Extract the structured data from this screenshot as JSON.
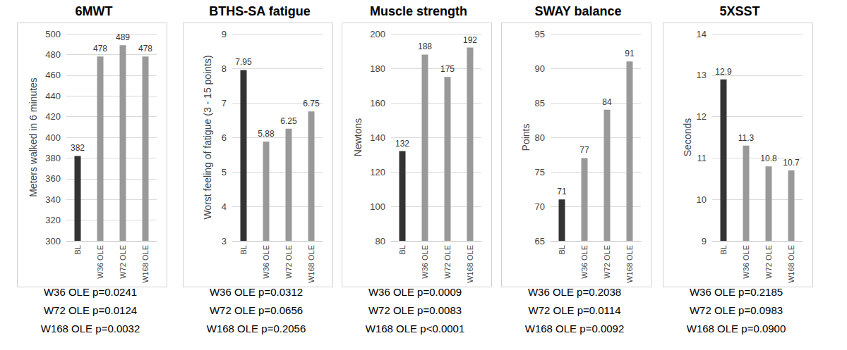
{
  "chart_data": [
    {
      "type": "bar",
      "title": "6MWT",
      "y_label": "Meters walked in 6 minutes",
      "categories": [
        "BL",
        "W36 OLE",
        "W72 OLE",
        "W168 OLE"
      ],
      "values": [
        382,
        478,
        489,
        478
      ],
      "colors": [
        "#333333",
        "#999999",
        "#999999",
        "#999999"
      ],
      "ylim": [
        300,
        500
      ],
      "yticks": [
        300,
        320,
        340,
        360,
        380,
        400,
        420,
        440,
        460,
        480,
        500
      ],
      "grid": true,
      "data_labels": true,
      "annotations": [
        "W36 OLE p=0.0241",
        "W72 OLE p=0.0124",
        "W168 OLE p=0.0032"
      ]
    },
    {
      "type": "bar",
      "title": "BTHS-SA fatigue",
      "y_label": "Worst feeling of fatigue (3 - 15 points)",
      "categories": [
        "BL",
        "W36 OLE",
        "W72 OLE",
        "W168 OLE"
      ],
      "values": [
        7.95,
        5.88,
        6.25,
        6.75
      ],
      "colors": [
        "#333333",
        "#999999",
        "#999999",
        "#999999"
      ],
      "ylim": [
        3,
        9
      ],
      "yticks": [
        3,
        4,
        5,
        6,
        7,
        8,
        9
      ],
      "grid": true,
      "data_labels": true,
      "annotations": [
        "W36 OLE p=0.0312",
        "W72 OLE p=0.0656",
        "W168 OLE p=0.2056"
      ]
    },
    {
      "type": "bar",
      "title": "Muscle strength",
      "y_label": "Newtons",
      "categories": [
        "BL",
        "W36 OLE",
        "W72 OLE",
        "W168 OLE"
      ],
      "values": [
        132,
        188,
        175,
        192
      ],
      "colors": [
        "#333333",
        "#999999",
        "#999999",
        "#999999"
      ],
      "ylim": [
        80,
        200
      ],
      "yticks": [
        80,
        100,
        120,
        140,
        160,
        180,
        200
      ],
      "grid": true,
      "data_labels": true,
      "annotations": [
        "W36 OLE p=0.0009",
        "W72 OLE p=0.0083",
        "W168 OLE p<0.0001"
      ]
    },
    {
      "type": "bar",
      "title": "SWAY balance",
      "y_label": "Points",
      "categories": [
        "BL",
        "W36 OLE",
        "W72 OLE",
        "W168 OLE"
      ],
      "values": [
        71,
        77,
        84,
        91
      ],
      "colors": [
        "#333333",
        "#999999",
        "#999999",
        "#999999"
      ],
      "ylim": [
        65,
        95
      ],
      "yticks": [
        65,
        70,
        75,
        80,
        85,
        90,
        95
      ],
      "grid": true,
      "data_labels": true,
      "annotations": [
        "W36 OLE p=0.2038",
        "W72 OLE p=0.0114",
        "W168 OLE p=0.0092"
      ]
    },
    {
      "type": "bar",
      "title": "5XSST",
      "y_label": "Seconds",
      "categories": [
        "BL",
        "W36 OLE",
        "W72 OLE",
        "W168 OLE"
      ],
      "values": [
        12.9,
        11.3,
        10.8,
        10.7
      ],
      "colors": [
        "#333333",
        "#999999",
        "#999999",
        "#999999"
      ],
      "ylim": [
        9,
        14
      ],
      "yticks": [
        9,
        10,
        11,
        12,
        13,
        14
      ],
      "grid": true,
      "data_labels": true,
      "annotations": [
        "W36 OLE p=0.2185",
        "W72 OLE p=0.0983",
        "W168 OLE p=0.0900"
      ]
    }
  ]
}
